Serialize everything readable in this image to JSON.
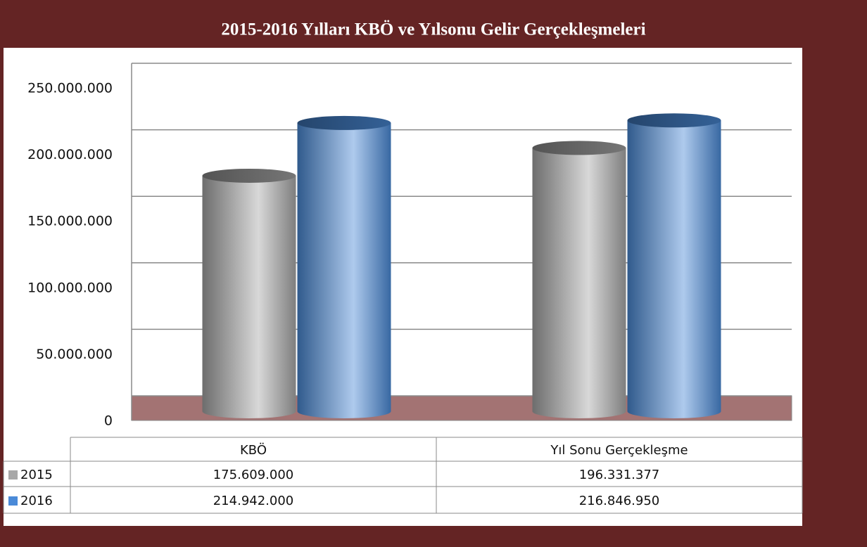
{
  "chart_data": {
    "type": "bar",
    "title": "2015-2016 Yılları KBÖ ve Yılsonu Gelir Gerçekleşmeleri",
    "categories": [
      "KBÖ",
      "Yıl Sonu Gerçekleşme"
    ],
    "series": [
      {
        "name": "2015",
        "color": "#a8a8a8",
        "values": [
          175609000,
          196331377
        ],
        "value_labels": [
          "175.609.000",
          "196.331.377"
        ]
      },
      {
        "name": "2016",
        "color": "#4a8ad8",
        "values": [
          214942000,
          216846950
        ],
        "value_labels": [
          "214.942.000",
          "216.846.950"
        ]
      }
    ],
    "ylim": [
      0,
      250000000
    ],
    "yticks": [
      0,
      {
        "value": 50000000,
        "label": "50.000.000"
      },
      {
        "value": 100000000,
        "label": "100.000.000"
      },
      {
        "value": 150000000,
        "label": "150.000.000"
      },
      {
        "value": 200000000,
        "label": "200.000.000"
      },
      {
        "value": 250000000,
        "label": "250.000.000"
      }
    ],
    "grid": true
  }
}
